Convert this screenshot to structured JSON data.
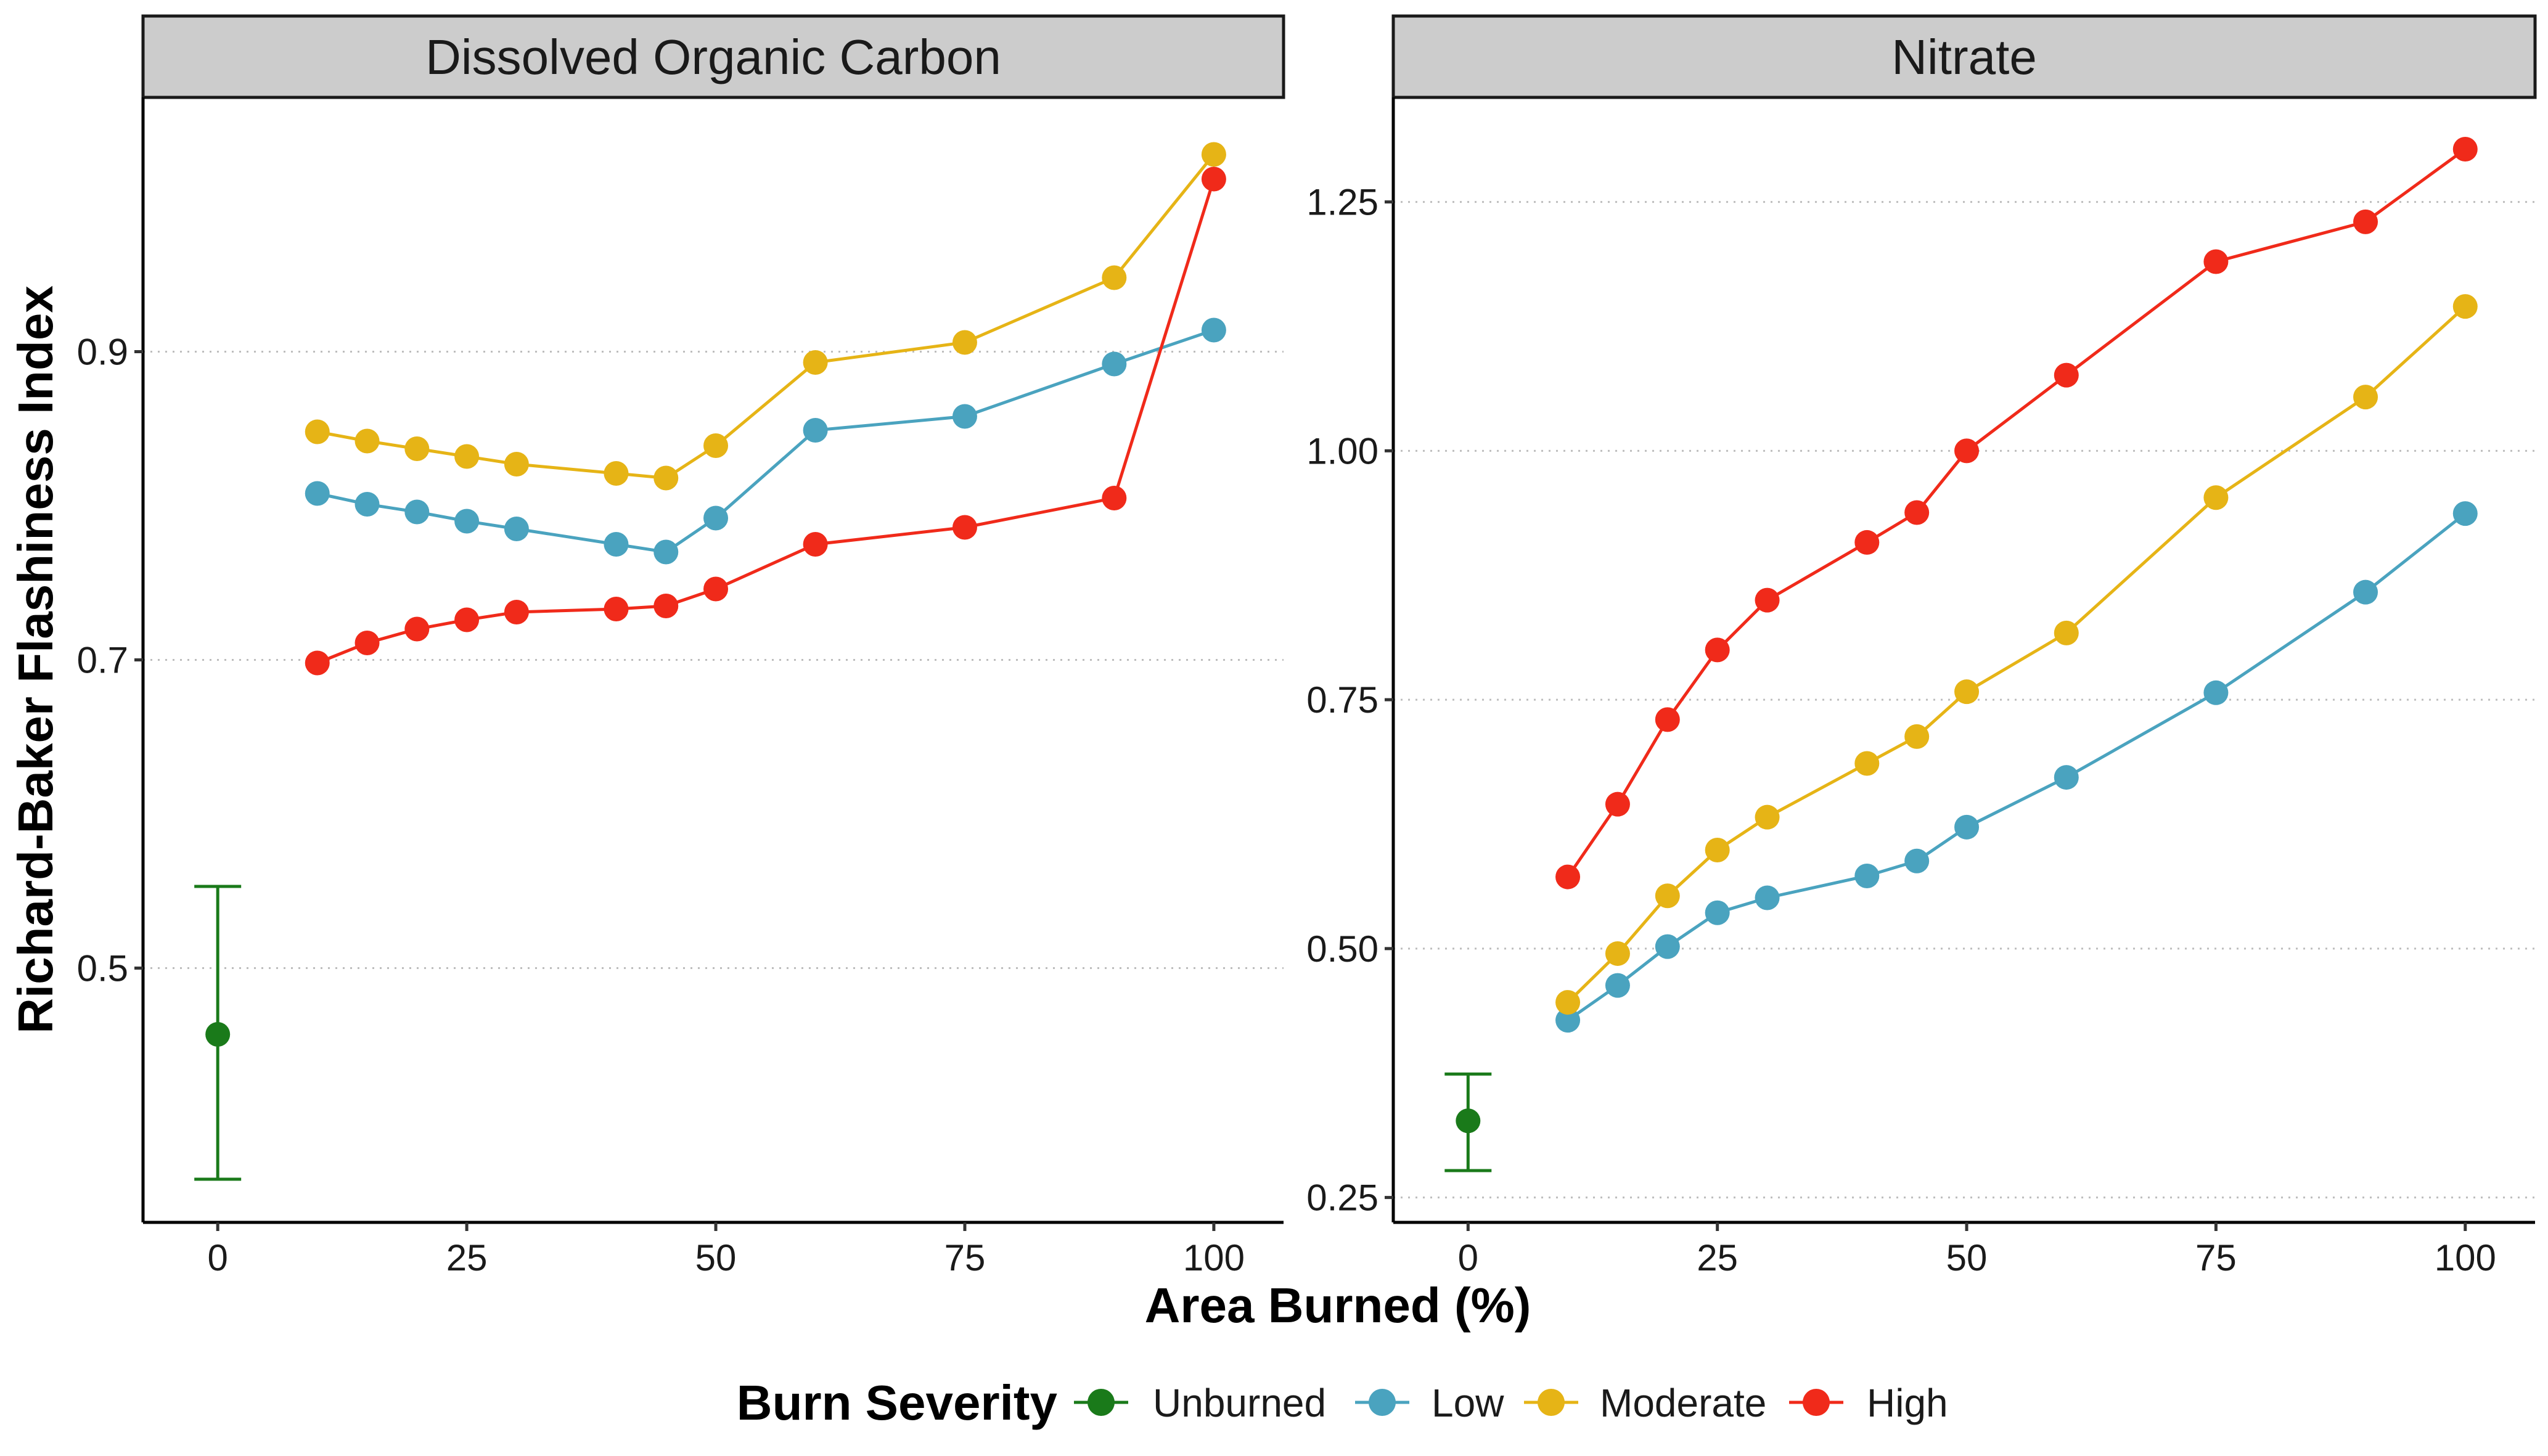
{
  "xlabel": "Area Burned (%)",
  "ylabel": "Richard-Baker Flashiness Index",
  "legend": {
    "title": "Burn Severity",
    "position": "bottom",
    "items": [
      {
        "label": "Unburned",
        "color": "#1a7a1a"
      },
      {
        "label": "Low",
        "color": "#4aa3bf"
      },
      {
        "label": "Moderate",
        "color": "#e6b416"
      },
      {
        "label": "High",
        "color": "#f02a1a"
      }
    ]
  },
  "chart_data": [
    {
      "type": "line",
      "title": "Dissolved Organic Carbon",
      "xlim": [
        -7.5,
        107
      ],
      "ylim": [
        0.335,
        1.065
      ],
      "xticks": [
        "0",
        "25",
        "50",
        "75",
        "100"
      ],
      "yticks": [
        "0.5",
        "0.7",
        "0.9"
      ],
      "grid": "horizontal dotted",
      "x": [
        10,
        15,
        20,
        25,
        30,
        40,
        45,
        50,
        60,
        75,
        90,
        100
      ],
      "series": [
        {
          "name": "Low",
          "color": "#4aa3bf",
          "values": [
            0.808,
            0.801,
            0.796,
            0.79,
            0.785,
            0.775,
            0.77,
            0.792,
            0.849,
            0.858,
            0.892,
            0.914
          ]
        },
        {
          "name": "Moderate",
          "color": "#e6b416",
          "values": [
            0.848,
            0.842,
            0.837,
            0.832,
            0.827,
            0.821,
            0.818,
            0.839,
            0.893,
            0.906,
            0.948,
            1.028
          ]
        },
        {
          "name": "High",
          "color": "#f02a1a",
          "values": [
            0.698,
            0.711,
            0.72,
            0.726,
            0.731,
            0.733,
            0.735,
            0.746,
            0.775,
            0.786,
            0.805,
            1.012
          ]
        }
      ],
      "unburned": {
        "name": "Unburned",
        "color": "#1a7a1a",
        "x": 0,
        "y": 0.457,
        "ymin": 0.363,
        "ymax": 0.553
      }
    },
    {
      "type": "line",
      "title": "Nitrate",
      "xlim": [
        -7.5,
        107
      ],
      "ylim": [
        0.225,
        1.355
      ],
      "xticks": [
        "0",
        "25",
        "50",
        "75",
        "100"
      ],
      "yticks": [
        "0.25",
        "0.50",
        "0.75",
        "1.00",
        "1.25"
      ],
      "grid": "horizontal dotted",
      "x": [
        10,
        15,
        20,
        25,
        30,
        40,
        45,
        50,
        60,
        75,
        90,
        100
      ],
      "series": [
        {
          "name": "Low",
          "color": "#4aa3bf",
          "values": [
            0.428,
            0.463,
            0.502,
            0.536,
            0.551,
            0.573,
            0.588,
            0.622,
            0.672,
            0.757,
            0.858,
            0.937
          ]
        },
        {
          "name": "Moderate",
          "color": "#e6b416",
          "values": [
            0.446,
            0.495,
            0.553,
            0.599,
            0.632,
            0.686,
            0.713,
            0.758,
            0.817,
            0.953,
            1.054,
            1.145
          ]
        },
        {
          "name": "High",
          "color": "#f02a1a",
          "values": [
            0.572,
            0.645,
            0.73,
            0.8,
            0.85,
            0.908,
            0.938,
            1.0,
            1.076,
            1.19,
            1.23,
            1.303
          ]
        }
      ],
      "unburned": {
        "name": "Unburned",
        "color": "#1a7a1a",
        "x": 0,
        "y": 0.327,
        "ymin": 0.277,
        "ymax": 0.374
      }
    }
  ]
}
